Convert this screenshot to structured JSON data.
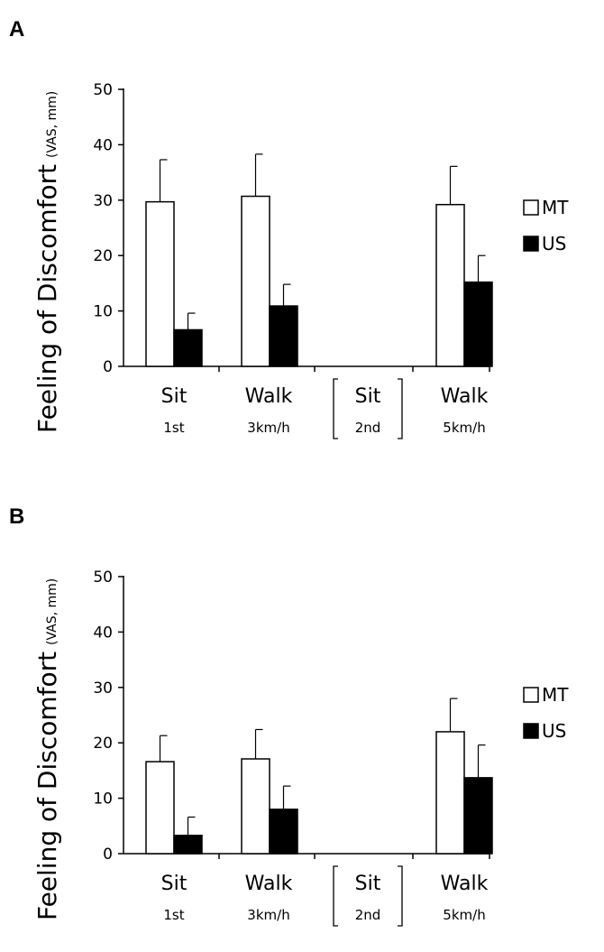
{
  "chart_data": [
    {
      "panel_label": "A",
      "type": "bar",
      "ylabel": "Feeling of Discomfort",
      "yunit": "(VAS, mm)",
      "ylim": [
        0,
        50
      ],
      "yticks": [
        0,
        10,
        20,
        30,
        40,
        50
      ],
      "categories": [
        "Sit",
        "Walk",
        "Sit",
        "Walk"
      ],
      "subcategories": [
        "1st",
        "3km/h",
        "2nd",
        "5km/h"
      ],
      "bracketed_category_index": 2,
      "series": [
        {
          "name": "MT",
          "color": "#ffffff",
          "values": [
            29.7,
            30.7,
            null,
            29.2
          ],
          "errors": [
            7.6,
            7.6,
            null,
            6.9
          ]
        },
        {
          "name": "US",
          "color": "#000000",
          "values": [
            6.6,
            10.9,
            null,
            15.2
          ],
          "errors": [
            3.0,
            3.9,
            null,
            4.8
          ]
        }
      ],
      "legend": "right"
    },
    {
      "panel_label": "B",
      "type": "bar",
      "ylabel": "Feeling of Discomfort",
      "yunit": "(VAS, mm)",
      "ylim": [
        0,
        50
      ],
      "yticks": [
        0,
        10,
        20,
        30,
        40,
        50
      ],
      "categories": [
        "Sit",
        "Walk",
        "Sit",
        "Walk"
      ],
      "subcategories": [
        "1st",
        "3km/h",
        "2nd",
        "5km/h"
      ],
      "bracketed_category_index": 2,
      "series": [
        {
          "name": "MT",
          "color": "#ffffff",
          "values": [
            16.6,
            17.1,
            null,
            22.0
          ],
          "errors": [
            4.7,
            5.3,
            null,
            6.0
          ]
        },
        {
          "name": "US",
          "color": "#000000",
          "values": [
            3.3,
            8.0,
            null,
            13.7
          ],
          "errors": [
            3.3,
            4.2,
            null,
            5.9
          ]
        }
      ],
      "legend": "right"
    }
  ]
}
